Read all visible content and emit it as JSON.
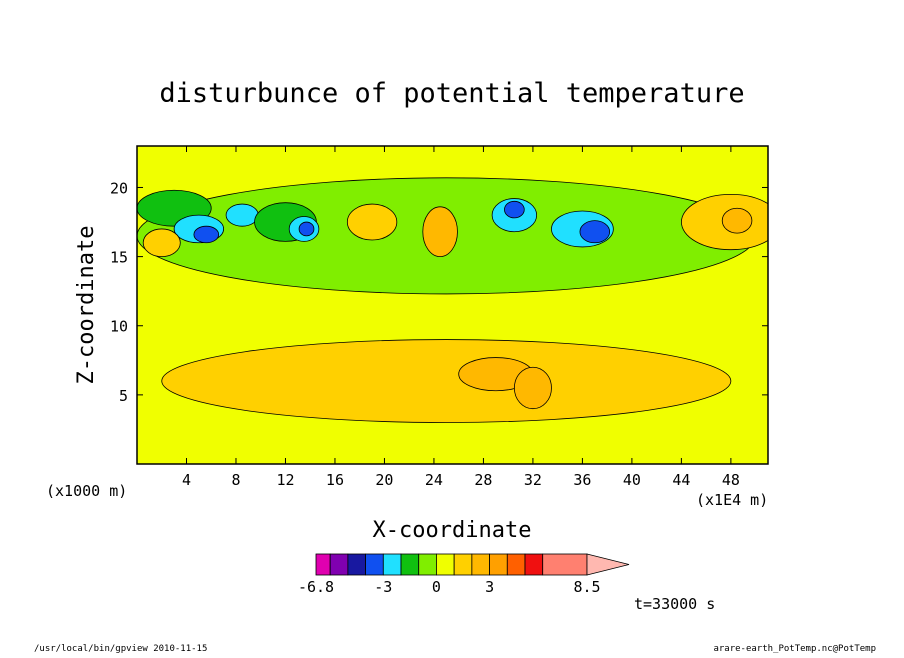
{
  "chart_data": {
    "type": "heatmap",
    "title": "disturbunce of potential temperature",
    "xlabel": "X-coordinate",
    "ylabel": "Z-coordinate",
    "x_unit_label": "(x1E4 m)",
    "y_unit_label": "(x1000 m)",
    "xlim": [
      0,
      51
    ],
    "ylim": [
      0,
      23
    ],
    "x_ticks": [
      4,
      8,
      12,
      16,
      20,
      24,
      28,
      32,
      36,
      40,
      44,
      48
    ],
    "y_ticks": [
      5,
      10,
      15,
      20
    ],
    "colorbar": {
      "levels": [
        -6.8,
        -6,
        -5,
        -4,
        -3,
        -2,
        -1,
        0,
        1,
        2,
        3,
        4,
        5,
        6,
        8.5
      ],
      "colors": [
        "#e000b0",
        "#8000b0",
        "#1818a0",
        "#1050f0",
        "#20e0ff",
        "#10c010",
        "#80ee00",
        "#f0ff00",
        "#ffd000",
        "#ffb800",
        "#ffa000",
        "#ff6000",
        "#f01010",
        "#ff8070",
        "#ffb8b0"
      ],
      "labels": [
        "-6.8",
        "-3",
        "0",
        "3",
        "8.5"
      ],
      "label_values": [
        -6.8,
        -3,
        0,
        3,
        8.5
      ],
      "extend": "max"
    },
    "background_value": 0.5,
    "features": [
      {
        "x": 25,
        "z": 6,
        "rx": 23,
        "rz": 3,
        "value": 1.5
      },
      {
        "x": 29,
        "z": 6.5,
        "rx": 3,
        "rz": 1.2,
        "value": 2.5
      },
      {
        "x": 32,
        "z": 5.5,
        "rx": 1.5,
        "rz": 1.5,
        "value": 2.5
      },
      {
        "x": 25,
        "z": 16.5,
        "rx": 25,
        "rz": 4.2,
        "value": -0.5
      },
      {
        "x": 3,
        "z": 18.5,
        "rx": 3,
        "rz": 1.3,
        "value": -1.5
      },
      {
        "x": 5,
        "z": 17,
        "rx": 2,
        "rz": 1,
        "value": -2.5
      },
      {
        "x": 5.6,
        "z": 16.6,
        "rx": 1,
        "rz": 0.6,
        "value": -3.5
      },
      {
        "x": 8.5,
        "z": 18,
        "rx": 1.3,
        "rz": 0.8,
        "value": -2.5
      },
      {
        "x": 12,
        "z": 17.5,
        "rx": 2.5,
        "rz": 1.4,
        "value": -1.5
      },
      {
        "x": 13.5,
        "z": 17,
        "rx": 1.2,
        "rz": 0.9,
        "value": -2.5
      },
      {
        "x": 13.7,
        "z": 17,
        "rx": 0.6,
        "rz": 0.5,
        "value": -3.5
      },
      {
        "x": 30.5,
        "z": 18,
        "rx": 1.8,
        "rz": 1.2,
        "value": -2.5
      },
      {
        "x": 30.5,
        "z": 18.4,
        "rx": 0.8,
        "rz": 0.6,
        "value": -3.5
      },
      {
        "x": 36,
        "z": 17,
        "rx": 2.5,
        "rz": 1.3,
        "value": -2.5
      },
      {
        "x": 37,
        "z": 16.8,
        "rx": 1.2,
        "rz": 0.8,
        "value": -3.5
      },
      {
        "x": 48,
        "z": 17.5,
        "rx": 4,
        "rz": 2,
        "value": 1.5
      },
      {
        "x": 48.5,
        "z": 17.6,
        "rx": 1.2,
        "rz": 0.9,
        "value": 2.5
      },
      {
        "x": 24.5,
        "z": 16.8,
        "rx": 1.4,
        "rz": 1.8,
        "value": 2.5
      },
      {
        "x": 19,
        "z": 17.5,
        "rx": 2,
        "rz": 1.3,
        "value": 1.5
      },
      {
        "x": 2,
        "z": 16,
        "rx": 1.5,
        "rz": 1,
        "value": 1.5
      }
    ]
  },
  "footer": {
    "timestamp": "t=33000 s",
    "left_info": "/usr/local/bin/gpview  2010-11-15",
    "right_info": "arare-earth_PotTemp.nc@PotTemp"
  }
}
